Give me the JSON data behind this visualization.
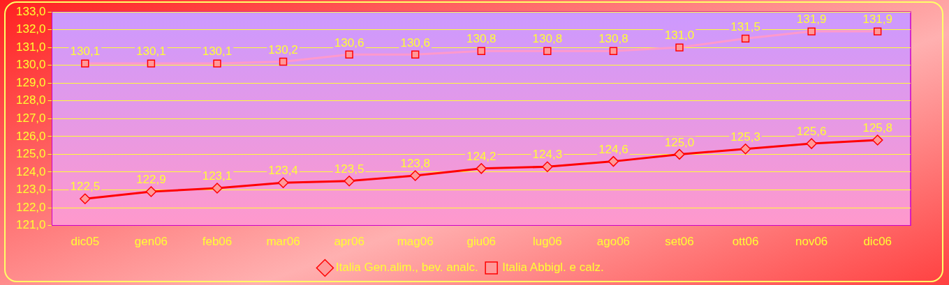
{
  "chart_data": {
    "type": "line",
    "categories": [
      "dic05",
      "gen06",
      "feb06",
      "mar06",
      "apr06",
      "mag06",
      "giu06",
      "lug06",
      "ago06",
      "set06",
      "ott06",
      "nov06",
      "dic06"
    ],
    "series": [
      {
        "name": "Italia Gen.alim., bev. analc.",
        "color": "#ff0000",
        "marker": "diamond",
        "values": [
          122.5,
          122.9,
          123.1,
          123.4,
          123.5,
          123.8,
          124.2,
          124.3,
          124.6,
          125.0,
          125.3,
          125.6,
          125.8
        ],
        "value_labels": [
          "122,5",
          "122,9",
          "123,1",
          "123,4",
          "123,5",
          "123,8",
          "124,2",
          "124,3",
          "124,6",
          "125,0",
          "125,3",
          "125,6",
          "125,8"
        ]
      },
      {
        "name": "Italia Abbigl. e calz.",
        "color": "#ff99cc",
        "marker": "square",
        "values": [
          130.1,
          130.1,
          130.1,
          130.2,
          130.6,
          130.6,
          130.8,
          130.8,
          130.8,
          131.0,
          131.5,
          131.9,
          131.9
        ],
        "value_labels": [
          "130,1",
          "130,1",
          "130,1",
          "130,2",
          "130,6",
          "130,6",
          "130,8",
          "130,8",
          "130,8",
          "131,0",
          "131,5",
          "131,9",
          "131,9"
        ]
      }
    ],
    "ylim": [
      121,
      133
    ],
    "yticks": [
      {
        "value": 121,
        "label": "121,0"
      },
      {
        "value": 122,
        "label": "122,0"
      },
      {
        "value": 123,
        "label": "123,0"
      },
      {
        "value": 124,
        "label": "124,0"
      },
      {
        "value": 125,
        "label": "125,0"
      },
      {
        "value": 126,
        "label": "126,0"
      },
      {
        "value": 127,
        "label": "127,0"
      },
      {
        "value": 128,
        "label": "128,0"
      },
      {
        "value": 129,
        "label": "129,0"
      },
      {
        "value": 130,
        "label": "130,0"
      },
      {
        "value": 131,
        "label": "131,0"
      },
      {
        "value": 132,
        "label": "132,0"
      },
      {
        "value": 133,
        "label": "133,0"
      }
    ],
    "grid": "y",
    "legend": "bottom",
    "line_style": "solid"
  }
}
